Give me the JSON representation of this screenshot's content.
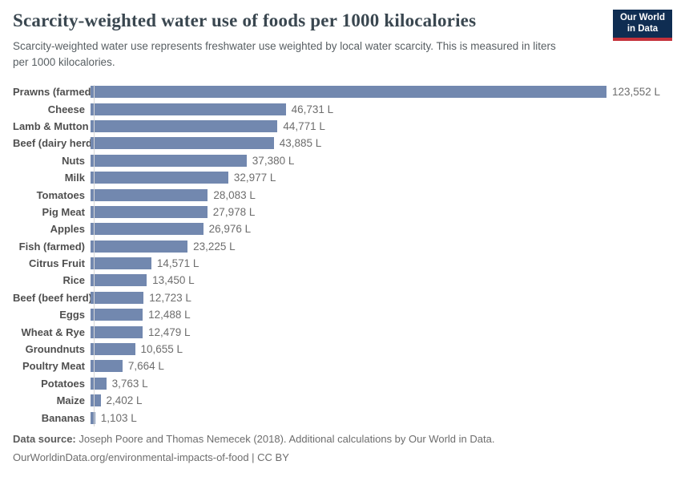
{
  "header": {
    "title": "Scarcity-weighted water use of foods per 1000 kilocalories",
    "subtitle": "Scarcity-weighted water use represents freshwater use weighted by local water scarcity. This is measured in liters per 1000 kilocalories.",
    "logo": {
      "line1": "Our World",
      "line2": "in Data"
    }
  },
  "chart_data": {
    "type": "bar",
    "orientation": "horizontal",
    "title": "Scarcity-weighted water use of foods per 1000 kilocalories",
    "unit": "liters per 1000 kilocalories",
    "categories": [
      "Prawns (farmed)",
      "Cheese",
      "Lamb & Mutton",
      "Beef (dairy herd)",
      "Nuts",
      "Milk",
      "Tomatoes",
      "Pig Meat",
      "Apples",
      "Fish (farmed)",
      "Citrus Fruit",
      "Rice",
      "Beef (beef herd)",
      "Eggs",
      "Wheat & Rye",
      "Groundnuts",
      "Poultry Meat",
      "Potatoes",
      "Maize",
      "Bananas"
    ],
    "values": [
      123552,
      46731,
      44771,
      43885,
      37380,
      32977,
      28083,
      27978,
      26976,
      23225,
      14571,
      13450,
      12723,
      12488,
      12479,
      10655,
      7664,
      3763,
      2402,
      1103
    ],
    "value_labels": [
      "123,552 L",
      "46,731 L",
      "44,771 L",
      "43,885 L",
      "37,380 L",
      "32,977 L",
      "28,083 L",
      "27,978 L",
      "26,976 L",
      "23,225 L",
      "14,571 L",
      "13,450 L",
      "12,723 L",
      "12,488 L",
      "12,479 L",
      "10,655 L",
      "7,664 L",
      "3,763 L",
      "2,402 L",
      "1,103 L"
    ],
    "xlim": [
      0,
      123552
    ],
    "grid": false,
    "legend": "none",
    "bar_color": "#7288af"
  },
  "footer": {
    "source_label": "Data source:",
    "source_text": " Joseph Poore and Thomas Nemecek (2018). Additional calculations by Our World in Data.",
    "url_line": "OurWorldinData.org/environmental-impacts-of-food | CC BY"
  },
  "colors": {
    "bar": "#7288af",
    "title_text": "#3a4750",
    "subtitle_text": "#585f63",
    "category_text": "#4f4f4f",
    "value_text": "#6d6d6d",
    "logo_background": "#0f2d52",
    "logo_stripe": "#c5323b",
    "axis_line": "#d8d8d8"
  }
}
